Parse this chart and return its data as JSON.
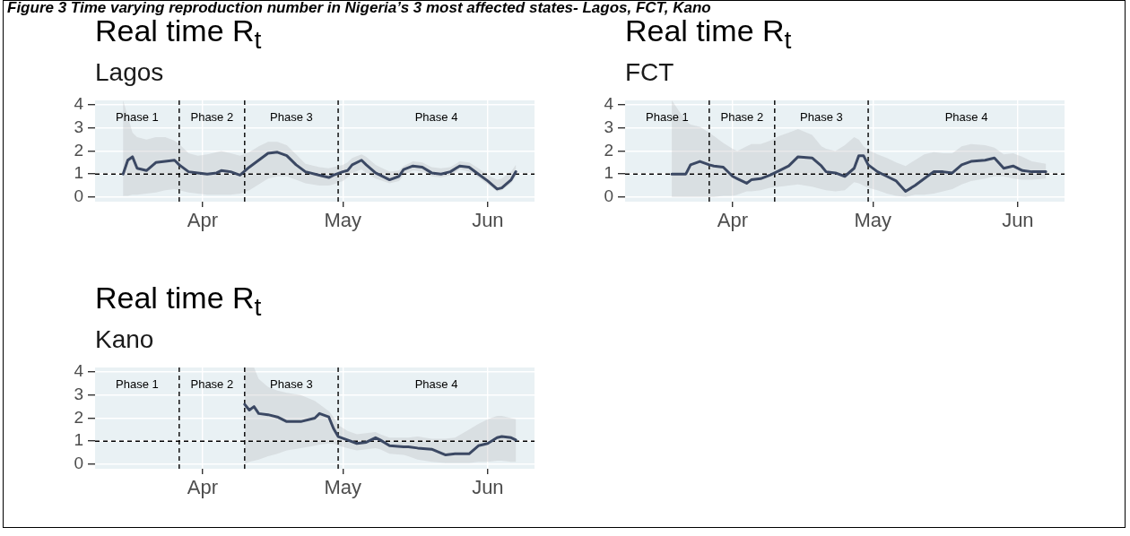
{
  "chart_data": [
    {
      "type": "line",
      "title": "Real time R$_{t}$",
      "subtitle": "Lagos",
      "annotations": [
        "Figure 3 Time varying reproduction number in Nigeria’s 3 most affected states- Lagos, FCT, Kano",
        "Phase 1",
        "Phase 2",
        "Phase 3",
        "Phase 4"
      ],
      "series": [
        {
          "color": "#3b4863",
          "x": [
            "--03-15",
            "--03-16",
            "--03-17",
            "--03-18",
            "--03-20",
            "--03-22",
            "--03-24",
            "--03-26",
            "--03-27",
            "--03-29",
            "--03-31",
            "--04-02",
            "--04-04",
            "--04-05",
            "--04-07",
            "--04-09",
            "--04-11",
            "--04-13",
            "--04-15",
            "--04-17",
            "--04-19",
            "--04-21",
            "--04-23",
            "--04-26",
            "--04-28",
            "--04-29",
            "--05-01",
            "--05-02",
            "--05-03",
            "--05-05",
            "--05-06",
            "--05-08",
            "--05-11",
            "--05-13",
            "--05-14",
            "--05-16",
            "--05-18",
            "--05-20",
            "--05-22",
            "--05-24",
            "--05-26",
            "--05-28",
            "--05-30",
            "--06-01",
            "--06-03",
            "--06-04",
            "--06-06",
            "--06-07"
          ],
          "values": [
            1.0,
            1.6,
            1.75,
            1.25,
            1.15,
            1.5,
            1.55,
            1.6,
            1.4,
            1.1,
            1.05,
            1.0,
            1.05,
            1.15,
            1.1,
            0.95,
            1.3,
            1.6,
            1.9,
            1.95,
            1.8,
            1.4,
            1.1,
            0.95,
            0.85,
            0.95,
            1.1,
            1.15,
            1.4,
            1.6,
            1.4,
            1.05,
            0.75,
            0.9,
            1.2,
            1.35,
            1.3,
            1.05,
            1.0,
            1.1,
            1.35,
            1.3,
            1.0,
            0.7,
            0.35,
            0.4,
            0.75,
            1.1
          ],
          "lower": [
            0.05,
            0.05,
            0.1,
            0.1,
            0.15,
            0.2,
            0.3,
            0.35,
            0.3,
            0.2,
            0.15,
            0.1,
            0.1,
            0.1,
            0.1,
            0.15,
            0.3,
            0.55,
            0.8,
            0.9,
            0.9,
            0.75,
            0.6,
            0.5,
            0.5,
            0.55,
            0.7,
            0.85,
            1.05,
            1.2,
            1.05,
            0.8,
            0.6,
            0.7,
            0.95,
            1.15,
            1.1,
            0.9,
            0.85,
            0.95,
            1.2,
            1.1,
            0.85,
            0.55,
            0.25,
            0.3,
            0.6,
            0.9
          ],
          "upper": [
            4.2,
            3.5,
            2.8,
            2.6,
            2.5,
            2.6,
            2.6,
            2.45,
            2.3,
            1.9,
            1.8,
            1.85,
            1.95,
            2.0,
            1.9,
            1.8,
            1.95,
            2.2,
            2.4,
            2.4,
            2.25,
            1.85,
            1.45,
            1.3,
            1.25,
            1.3,
            1.4,
            1.5,
            1.7,
            1.85,
            1.75,
            1.4,
            1.1,
            1.15,
            1.35,
            1.55,
            1.5,
            1.3,
            1.25,
            1.3,
            1.55,
            1.5,
            1.25,
            0.95,
            0.75,
            0.8,
            1.1,
            1.4
          ]
        }
      ],
      "xlim": [
        "--03-09",
        "--06-11"
      ],
      "xticks": [
        {
          "value": "--04-01",
          "label": "Apr"
        },
        {
          "value": "--05-01",
          "label": "May"
        },
        {
          "value": "--06-01",
          "label": "Jun"
        }
      ],
      "ylim": [
        -0.2,
        4.2
      ],
      "yticks": [
        0,
        1,
        2,
        3,
        4
      ],
      "grid": true,
      "ref_lines": [
        {
          "axis": "x",
          "value": "--03-27",
          "line_style": "dashed"
        },
        {
          "axis": "x",
          "value": "--04-10",
          "line_style": "dashed"
        },
        {
          "axis": "x",
          "value": "--04-30",
          "line_style": "dashed"
        },
        {
          "axis": "y",
          "value": 1,
          "line_style": "dashed"
        }
      ]
    },
    {
      "type": "line",
      "title": "Real time R$_{t}$",
      "subtitle": "FCT",
      "annotations": [
        "Phase 1",
        "Phase 2",
        "Phase 3",
        "Phase 4"
      ],
      "series": [
        {
          "color": "#3b4863",
          "x": [
            "--03-19",
            "--03-22",
            "--03-23",
            "--03-25",
            "--03-27",
            "--03-28",
            "--03-30",
            "--04-01",
            "--04-02",
            "--04-04",
            "--04-05",
            "--04-07",
            "--04-09",
            "--04-11",
            "--04-13",
            "--04-15",
            "--04-18",
            "--04-20",
            "--04-21",
            "--04-23",
            "--04-25",
            "--04-27",
            "--04-28",
            "--04-29",
            "--04-30",
            "--05-02",
            "--05-04",
            "--05-06",
            "--05-08",
            "--05-10",
            "--05-12",
            "--05-14",
            "--05-16",
            "--05-18",
            "--05-20",
            "--05-22",
            "--05-25",
            "--05-27",
            "--05-29",
            "--05-31",
            "--06-02",
            "--06-04",
            "--06-07"
          ],
          "values": [
            1.0,
            1.0,
            1.4,
            1.55,
            1.4,
            1.35,
            1.3,
            0.9,
            0.8,
            0.6,
            0.75,
            0.8,
            0.95,
            1.15,
            1.35,
            1.75,
            1.7,
            1.35,
            1.1,
            1.05,
            0.9,
            1.25,
            1.8,
            1.8,
            1.4,
            1.1,
            0.9,
            0.7,
            0.25,
            0.5,
            0.8,
            1.1,
            1.1,
            1.05,
            1.4,
            1.55,
            1.6,
            1.7,
            1.25,
            1.35,
            1.15,
            1.1,
            1.1
          ],
          "lower": [
            0.0,
            0.0,
            0.0,
            0.0,
            0.0,
            0.0,
            0.05,
            0.05,
            0.1,
            0.25,
            0.25,
            0.3,
            0.4,
            0.45,
            0.5,
            0.55,
            0.45,
            0.35,
            0.3,
            0.25,
            0.3,
            0.65,
            0.6,
            0.5,
            0.4,
            0.3,
            0.15,
            0.05,
            0.0,
            0.1,
            0.1,
            0.15,
            0.25,
            0.35,
            0.55,
            0.7,
            0.8,
            0.9,
            0.9,
            0.8,
            0.75,
            0.75,
            0.8
          ],
          "upper": [
            4.2,
            3.3,
            3.15,
            3.05,
            2.8,
            2.65,
            2.35,
            2.1,
            2.0,
            2.2,
            2.3,
            2.3,
            2.45,
            2.65,
            2.8,
            2.95,
            2.7,
            2.2,
            2.1,
            2.0,
            2.25,
            2.6,
            2.5,
            2.2,
            2.05,
            1.85,
            1.7,
            1.5,
            1.35,
            1.6,
            1.85,
            1.95,
            1.9,
            1.9,
            2.2,
            2.3,
            2.25,
            2.15,
            1.85,
            1.9,
            1.75,
            1.55,
            1.45
          ]
        }
      ],
      "xlim": [
        "--03-09",
        "--06-11"
      ],
      "xticks": [
        {
          "value": "--04-01",
          "label": "Apr"
        },
        {
          "value": "--05-01",
          "label": "May"
        },
        {
          "value": "--06-01",
          "label": "Jun"
        }
      ],
      "ylim": [
        -0.2,
        4.2
      ],
      "yticks": [
        0,
        1,
        2,
        3,
        4
      ],
      "grid": true,
      "ref_lines": [
        {
          "axis": "x",
          "value": "--03-27",
          "line_style": "dashed"
        },
        {
          "axis": "x",
          "value": "--04-10",
          "line_style": "dashed"
        },
        {
          "axis": "x",
          "value": "--04-30",
          "line_style": "dashed"
        },
        {
          "axis": "y",
          "value": 1,
          "line_style": "dashed"
        }
      ]
    },
    {
      "type": "line",
      "title": "Real time R$_{t}$",
      "subtitle": "Kano",
      "annotations": [
        "Phase 1",
        "Phase 2",
        "Phase 3",
        "Phase 4"
      ],
      "series": [
        {
          "color": "#3b4863",
          "x": [
            "--04-10",
            "--04-11",
            "--04-12",
            "--04-13",
            "--04-15",
            "--04-17",
            "--04-19",
            "--04-22",
            "--04-25",
            "--04-26",
            "--04-28",
            "--04-29",
            "--04-30",
            "--05-02",
            "--05-04",
            "--05-06",
            "--05-08",
            "--05-09",
            "--05-11",
            "--05-14",
            "--05-15",
            "--05-17",
            "--05-20",
            "--05-23",
            "--05-25",
            "--05-28",
            "--05-30",
            "--06-01",
            "--06-03",
            "--06-04",
            "--06-06",
            "--06-07"
          ],
          "values": [
            2.6,
            2.35,
            2.5,
            2.2,
            2.15,
            2.05,
            1.85,
            1.85,
            2.0,
            2.2,
            2.05,
            1.55,
            1.2,
            1.05,
            0.9,
            0.95,
            1.15,
            1.05,
            0.8,
            0.75,
            0.75,
            0.7,
            0.65,
            0.4,
            0.45,
            0.45,
            0.8,
            0.9,
            1.15,
            1.2,
            1.15,
            1.05
          ],
          "lower": [
            0.0,
            0.1,
            0.15,
            0.2,
            0.35,
            0.45,
            0.6,
            0.7,
            0.8,
            0.85,
            0.9,
            0.9,
            0.8,
            0.7,
            0.6,
            0.65,
            0.7,
            0.65,
            0.45,
            0.4,
            0.35,
            0.2,
            0.1,
            0.05,
            0.05,
            0.05,
            0.1,
            0.1,
            0.15,
            0.15,
            0.1,
            0.1
          ],
          "upper": [
            4.2,
            4.2,
            4.2,
            3.7,
            3.35,
            3.2,
            3.1,
            3.0,
            2.75,
            2.6,
            2.3,
            2.05,
            1.7,
            1.45,
            1.3,
            1.35,
            1.4,
            1.3,
            1.15,
            1.15,
            1.15,
            1.2,
            1.1,
            1.1,
            1.15,
            1.5,
            1.75,
            1.95,
            2.1,
            2.1,
            2.0,
            1.95
          ]
        }
      ],
      "xlim": [
        "--03-09",
        "--06-11"
      ],
      "xticks": [
        {
          "value": "--04-01",
          "label": "Apr"
        },
        {
          "value": "--05-01",
          "label": "May"
        },
        {
          "value": "--06-01",
          "label": "Jun"
        }
      ],
      "ylim": [
        -0.2,
        4.2
      ],
      "yticks": [
        0,
        1,
        2,
        3,
        4
      ],
      "grid": true,
      "ref_lines": [
        {
          "axis": "x",
          "value": "--03-27",
          "line_style": "dashed"
        },
        {
          "axis": "x",
          "value": "--04-10",
          "line_style": "dashed"
        },
        {
          "axis": "x",
          "value": "--04-30",
          "line_style": "dashed"
        },
        {
          "axis": "y",
          "value": 1,
          "line_style": "dashed"
        }
      ]
    }
  ]
}
